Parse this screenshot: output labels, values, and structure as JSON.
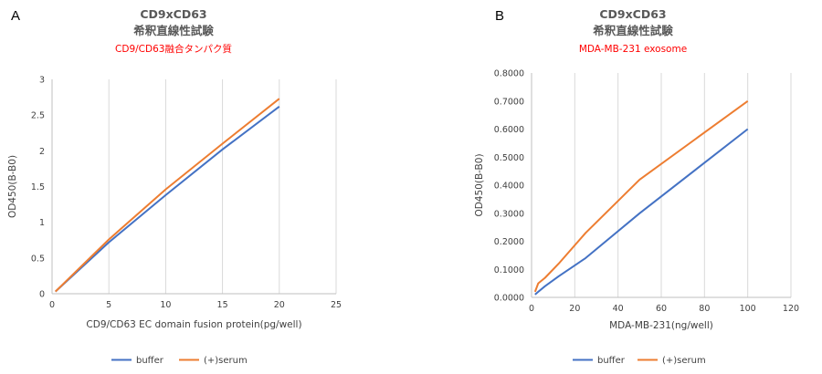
{
  "chart_data": [
    {
      "type": "line",
      "panel_label": "A",
      "title": "CD9xCD63",
      "title_line2": "希釈直線性試験",
      "subtitle": "CD9/CD63融合タンパク質",
      "xlabel": "CD9/CD63 EC domain fusion protein(pg/well)",
      "ylabel": "OD450(B-B0)",
      "xlim": [
        0,
        25
      ],
      "ylim": [
        0,
        3
      ],
      "x_ticks": [
        "0",
        "5",
        "10",
        "15",
        "20",
        "25"
      ],
      "y_ticks": [
        "0",
        "0.5",
        "1",
        "1.5",
        "2",
        "2.5",
        "3"
      ],
      "grid": "vertical",
      "legend_position": "bottom",
      "series": [
        {
          "name": "buffer",
          "color": "#4472c4",
          "x": [
            0.3,
            5,
            10,
            15,
            20
          ],
          "y": [
            0.03,
            0.72,
            1.38,
            2.02,
            2.62
          ]
        },
        {
          "name": "(+)serum",
          "color": "#ed7d31",
          "x": [
            0.3,
            5,
            10,
            15,
            20
          ],
          "y": [
            0.03,
            0.76,
            1.46,
            2.1,
            2.73
          ]
        }
      ]
    },
    {
      "type": "line",
      "panel_label": "B",
      "title": "CD9xCD63",
      "title_line2": "希釈直線性試験",
      "subtitle": "MDA-MB-231 exosome",
      "xlabel": "MDA-MB-231(ng/well)",
      "ylabel": "OD450(B-B0)",
      "xlim": [
        0,
        120
      ],
      "ylim": [
        0,
        0.8
      ],
      "x_ticks": [
        "0",
        "20",
        "40",
        "60",
        "80",
        "100",
        "120"
      ],
      "y_ticks": [
        "0.0000",
        "0.1000",
        "0.2000",
        "0.3000",
        "0.4000",
        "0.5000",
        "0.6000",
        "0.7000",
        "0.8000"
      ],
      "grid": "vertical",
      "legend_position": "bottom",
      "series": [
        {
          "name": "buffer",
          "color": "#4472c4",
          "x": [
            1.6,
            3.1,
            6.25,
            12.5,
            25,
            50,
            100
          ],
          "y": [
            0.01,
            0.02,
            0.04,
            0.075,
            0.14,
            0.3,
            0.6
          ]
        },
        {
          "name": "(+)serum",
          "color": "#ed7d31",
          "x": [
            1.6,
            3.1,
            6.25,
            12.5,
            25,
            50,
            100
          ],
          "y": [
            0.02,
            0.05,
            0.07,
            0.12,
            0.23,
            0.42,
            0.7
          ]
        }
      ]
    }
  ]
}
